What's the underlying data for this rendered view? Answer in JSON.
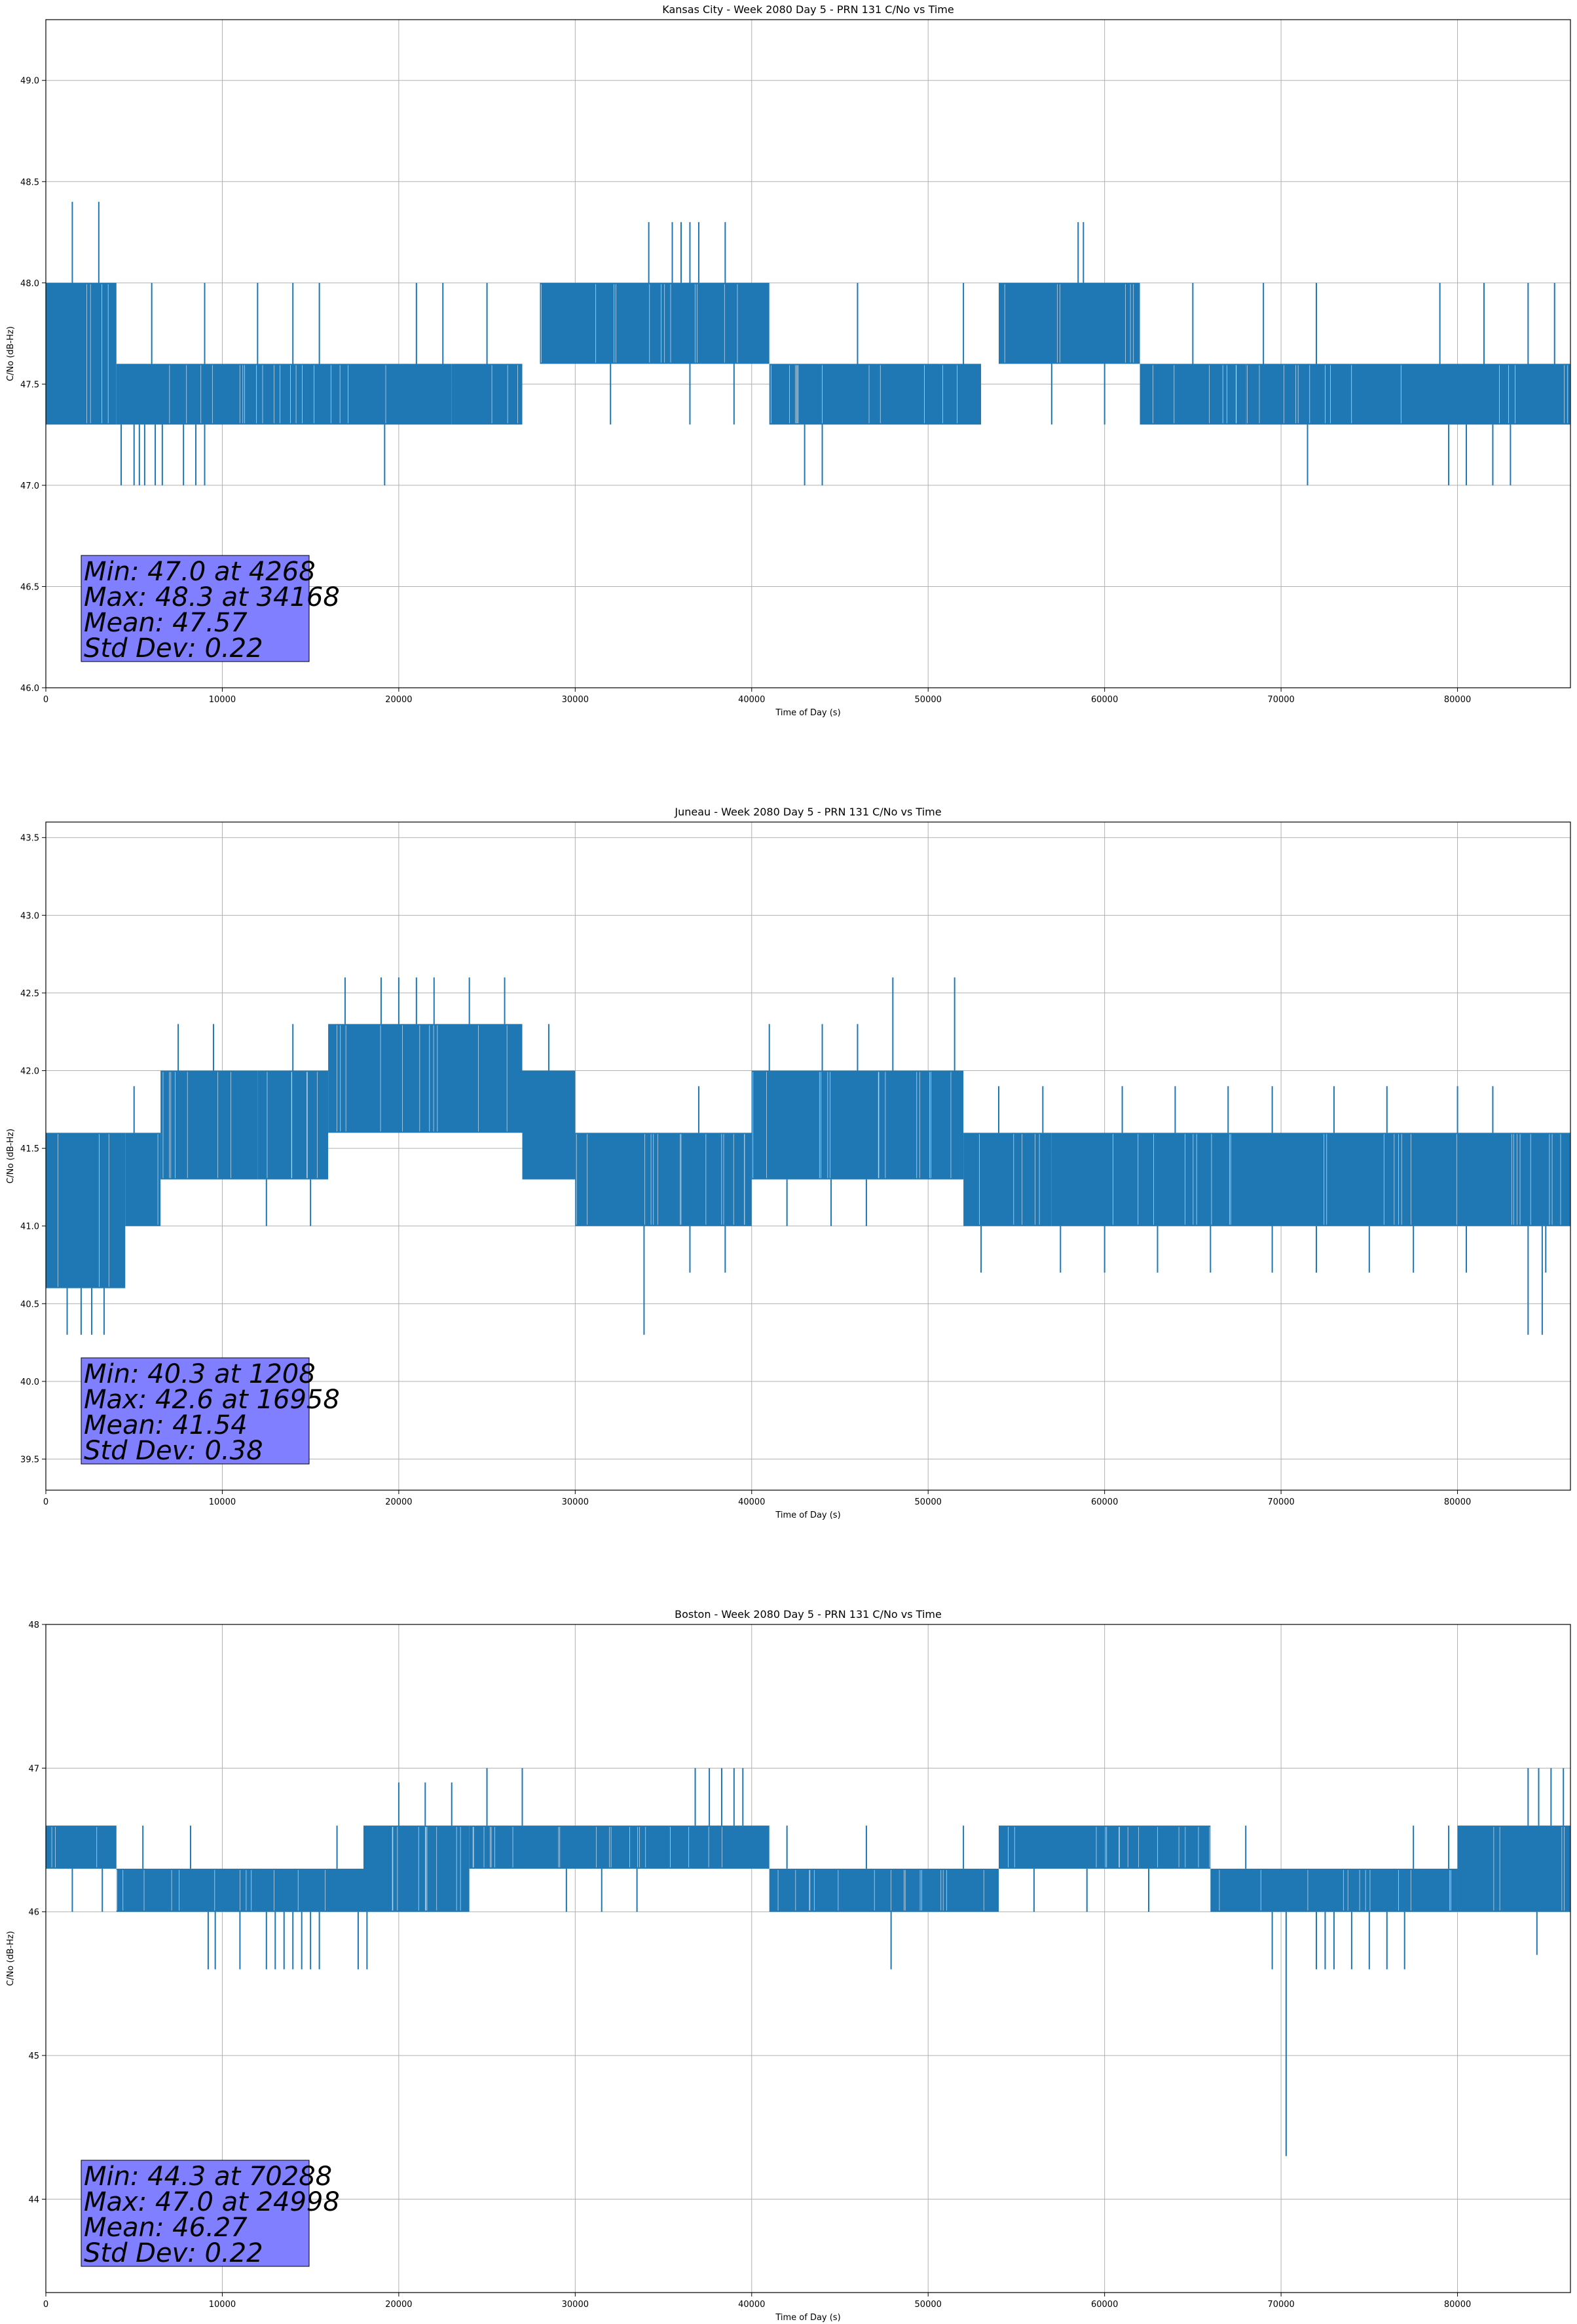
{
  "chart_data": [
    {
      "type": "line",
      "title": "Kansas City - Week 2080 Day 5 - PRN 131 C/No vs Time",
      "xlabel": "Time of Day (s)",
      "ylabel": "C/No (dB-Hz)",
      "xlim": [
        0,
        86400
      ],
      "ylim": [
        46.0,
        49.3
      ],
      "xticks": [
        0,
        10000,
        20000,
        30000,
        40000,
        50000,
        60000,
        70000,
        80000
      ],
      "yticks": [
        46.0,
        46.5,
        47.0,
        47.5,
        48.0,
        48.5,
        49.0
      ],
      "ytick_labels": [
        "46.0",
        "46.5",
        "47.0",
        "47.5",
        "48.0",
        "48.5",
        "49.0"
      ],
      "grid": true,
      "series": [
        {
          "color": "#1f77b4",
          "segments": [
            {
              "x": [
                0,
                4000
              ],
              "lo": 47.3,
              "hi": 48.0
            },
            {
              "x": [
                4000,
                23000
              ],
              "lo": 47.3,
              "hi": 47.6
            },
            {
              "x": [
                23000,
                27000
              ],
              "lo": 47.3,
              "hi": 47.6
            },
            {
              "x": [
                28000,
                41000
              ],
              "lo": 47.6,
              "hi": 48.0
            },
            {
              "x": [
                41000,
                53000
              ],
              "lo": 47.3,
              "hi": 47.6
            },
            {
              "x": [
                54000,
                62000
              ],
              "lo": 47.6,
              "hi": 48.0
            },
            {
              "x": [
                62000,
                68000
              ],
              "lo": 47.3,
              "hi": 47.6
            },
            {
              "x": [
                68000,
                86400
              ],
              "lo": 47.3,
              "hi": 47.6
            }
          ],
          "spikes": [
            {
              "x": 4268,
              "y": 47.0
            },
            {
              "x": 5000,
              "y": 47.0
            },
            {
              "x": 5300,
              "y": 47.0
            },
            {
              "x": 5600,
              "y": 47.0
            },
            {
              "x": 6200,
              "y": 47.0
            },
            {
              "x": 6600,
              "y": 47.0
            },
            {
              "x": 7800,
              "y": 47.0
            },
            {
              "x": 8500,
              "y": 47.0
            },
            {
              "x": 9000,
              "y": 47.0
            },
            {
              "x": 19200,
              "y": 47.0
            },
            {
              "x": 43000,
              "y": 47.0
            },
            {
              "x": 44000,
              "y": 47.0
            },
            {
              "x": 71500,
              "y": 47.0
            },
            {
              "x": 79500,
              "y": 47.0
            },
            {
              "x": 80500,
              "y": 47.0
            },
            {
              "x": 82000,
              "y": 47.0
            },
            {
              "x": 83000,
              "y": 47.0
            },
            {
              "x": 34168,
              "y": 48.3
            },
            {
              "x": 35500,
              "y": 48.3
            },
            {
              "x": 36000,
              "y": 48.3
            },
            {
              "x": 36500,
              "y": 48.3
            },
            {
              "x": 37000,
              "y": 48.3
            },
            {
              "x": 38500,
              "y": 48.3
            },
            {
              "x": 58500,
              "y": 48.3
            },
            {
              "x": 58800,
              "y": 48.3
            }
          ],
          "upper_spikes": [
            1500,
            3000,
            6000,
            9000,
            12000,
            14000,
            15500,
            21000,
            22500,
            25000,
            46000,
            52000,
            65000,
            69000,
            72000,
            79000,
            81500,
            84000,
            85500
          ],
          "lower_spikes_in_high": [
            32000,
            36500,
            39000,
            57000,
            60000
          ]
        }
      ],
      "annotation": {
        "lines": [
          "Min: 47.0 at 4268",
          "Max: 48.3 at 34168",
          "Mean: 47.57",
          "Std Dev: 0.22"
        ],
        "facecolor": "#7f7fff"
      }
    },
    {
      "type": "line",
      "title": "Juneau - Week 2080 Day 5 - PRN 131 C/No vs Time",
      "xlabel": "Time of Day (s)",
      "ylabel": "C/No (dB-Hz)",
      "xlim": [
        0,
        86400
      ],
      "ylim": [
        39.3,
        43.6
      ],
      "xticks": [
        0,
        10000,
        20000,
        30000,
        40000,
        50000,
        60000,
        70000,
        80000
      ],
      "yticks": [
        39.5,
        40.0,
        40.5,
        41.0,
        41.5,
        42.0,
        42.5,
        43.0,
        43.5
      ],
      "ytick_labels": [
        "39.5",
        "40.0",
        "40.5",
        "41.0",
        "41.5",
        "42.0",
        "42.5",
        "43.0",
        "43.5"
      ],
      "grid": true,
      "series": [
        {
          "color": "#1f77b4",
          "segments": [
            {
              "x": [
                0,
                4500
              ],
              "lo": 40.6,
              "hi": 41.6
            },
            {
              "x": [
                4500,
                6500
              ],
              "lo": 41.0,
              "hi": 41.6
            },
            {
              "x": [
                6500,
                12000
              ],
              "lo": 41.3,
              "hi": 42.0
            },
            {
              "x": [
                12000,
                16000
              ],
              "lo": 41.3,
              "hi": 42.0
            },
            {
              "x": [
                16000,
                27000
              ],
              "lo": 41.6,
              "hi": 42.3
            },
            {
              "x": [
                27000,
                30000
              ],
              "lo": 41.3,
              "hi": 42.0
            },
            {
              "x": [
                30000,
                40000
              ],
              "lo": 41.0,
              "hi": 41.6
            },
            {
              "x": [
                40000,
                52000
              ],
              "lo": 41.3,
              "hi": 42.0
            },
            {
              "x": [
                52000,
                57000
              ],
              "lo": 41.0,
              "hi": 41.6
            },
            {
              "x": [
                57000,
                86400
              ],
              "lo": 41.0,
              "hi": 41.6
            }
          ],
          "spikes": [
            {
              "x": 1208,
              "y": 40.3
            },
            {
              "x": 2000,
              "y": 40.3
            },
            {
              "x": 2600,
              "y": 40.3
            },
            {
              "x": 3300,
              "y": 40.3
            },
            {
              "x": 33900,
              "y": 40.3
            },
            {
              "x": 84000,
              "y": 40.3
            },
            {
              "x": 84800,
              "y": 40.3
            },
            {
              "x": 16958,
              "y": 42.6
            },
            {
              "x": 19000,
              "y": 42.6
            },
            {
              "x": 20000,
              "y": 42.6
            },
            {
              "x": 21000,
              "y": 42.6
            },
            {
              "x": 22000,
              "y": 42.6
            },
            {
              "x": 24000,
              "y": 42.6
            },
            {
              "x": 26000,
              "y": 42.6
            },
            {
              "x": 48000,
              "y": 42.6
            },
            {
              "x": 51500,
              "y": 42.6
            }
          ],
          "upper_spikes": [
            5000,
            7500,
            9500,
            14000,
            28500,
            37000,
            41000,
            44000,
            46000,
            54000,
            56500,
            61000,
            64000,
            67000,
            69500,
            73000,
            76000,
            80000,
            82000
          ],
          "lower_spikes_in_high": [
            12500,
            15000,
            36500,
            38500,
            42000,
            44500,
            46500,
            53000,
            57500,
            60000,
            63000,
            66000,
            69500,
            72000,
            75000,
            77500,
            80500,
            85000
          ]
        }
      ],
      "annotation": {
        "lines": [
          "Min: 40.3 at 1208",
          "Max: 42.6 at 16958",
          "Mean: 41.54",
          "Std Dev: 0.38"
        ],
        "facecolor": "#7f7fff"
      }
    },
    {
      "type": "line",
      "title": "Boston - Week 2080 Day 5 - PRN 131 C/No vs Time",
      "xlabel": "Time of Day (s)",
      "ylabel": "C/No (dB-Hz)",
      "xlim": [
        0,
        86400
      ],
      "ylim": [
        43.35,
        48.0
      ],
      "xticks": [
        0,
        10000,
        20000,
        30000,
        40000,
        50000,
        60000,
        70000,
        80000
      ],
      "yticks": [
        44,
        45,
        46,
        47,
        48
      ],
      "ytick_labels": [
        "44",
        "45",
        "46",
        "47",
        "48"
      ],
      "grid": true,
      "series": [
        {
          "color": "#1f77b4",
          "segments": [
            {
              "x": [
                0,
                4000
              ],
              "lo": 46.3,
              "hi": 46.6
            },
            {
              "x": [
                4000,
                18000
              ],
              "lo": 46.0,
              "hi": 46.3
            },
            {
              "x": [
                18000,
                24000
              ],
              "lo": 46.0,
              "hi": 46.6
            },
            {
              "x": [
                24000,
                41000
              ],
              "lo": 46.3,
              "hi": 46.6
            },
            {
              "x": [
                41000,
                54000
              ],
              "lo": 46.0,
              "hi": 46.3
            },
            {
              "x": [
                54000,
                66000
              ],
              "lo": 46.3,
              "hi": 46.6
            },
            {
              "x": [
                66000,
                80000
              ],
              "lo": 46.0,
              "hi": 46.3
            },
            {
              "x": [
                80000,
                86400
              ],
              "lo": 46.0,
              "hi": 46.6
            }
          ],
          "spikes": [
            {
              "x": 70288,
              "y": 44.3
            },
            {
              "x": 9200,
              "y": 45.6
            },
            {
              "x": 9600,
              "y": 45.6
            },
            {
              "x": 11000,
              "y": 45.6
            },
            {
              "x": 12500,
              "y": 45.6
            },
            {
              "x": 13000,
              "y": 45.6
            },
            {
              "x": 13500,
              "y": 45.6
            },
            {
              "x": 14000,
              "y": 45.6
            },
            {
              "x": 14500,
              "y": 45.6
            },
            {
              "x": 15000,
              "y": 45.6
            },
            {
              "x": 15500,
              "y": 45.6
            },
            {
              "x": 17700,
              "y": 45.6
            },
            {
              "x": 18200,
              "y": 45.6
            },
            {
              "x": 47900,
              "y": 45.6
            },
            {
              "x": 69500,
              "y": 45.6
            },
            {
              "x": 72000,
              "y": 45.6
            },
            {
              "x": 72500,
              "y": 45.6
            },
            {
              "x": 73000,
              "y": 45.6
            },
            {
              "x": 74000,
              "y": 45.6
            },
            {
              "x": 75000,
              "y": 45.6
            },
            {
              "x": 76000,
              "y": 45.6
            },
            {
              "x": 77000,
              "y": 45.6
            },
            {
              "x": 24998,
              "y": 47.0
            },
            {
              "x": 27000,
              "y": 47.0
            },
            {
              "x": 36800,
              "y": 47.0
            },
            {
              "x": 37600,
              "y": 47.0
            },
            {
              "x": 38300,
              "y": 47.0
            },
            {
              "x": 39000,
              "y": 47.0
            },
            {
              "x": 39500,
              "y": 47.0
            },
            {
              "x": 84000,
              "y": 47.0
            },
            {
              "x": 84600,
              "y": 47.0
            },
            {
              "x": 85300,
              "y": 47.0
            },
            {
              "x": 86000,
              "y": 47.0
            }
          ],
          "upper_spikes": [
            5500,
            8200,
            16500,
            20000,
            21500,
            23000,
            42000,
            46500,
            52000,
            68000,
            77500,
            79500
          ],
          "lower_spikes_in_high": [
            1500,
            3200,
            29500,
            31500,
            33500,
            56000,
            59000,
            62500,
            84500
          ]
        }
      ],
      "annotation": {
        "lines": [
          "Min: 44.3 at 70288",
          "Max: 47.0 at 24998",
          "Mean: 46.27",
          "Std Dev: 0.22"
        ],
        "facecolor": "#7f7fff"
      }
    }
  ]
}
